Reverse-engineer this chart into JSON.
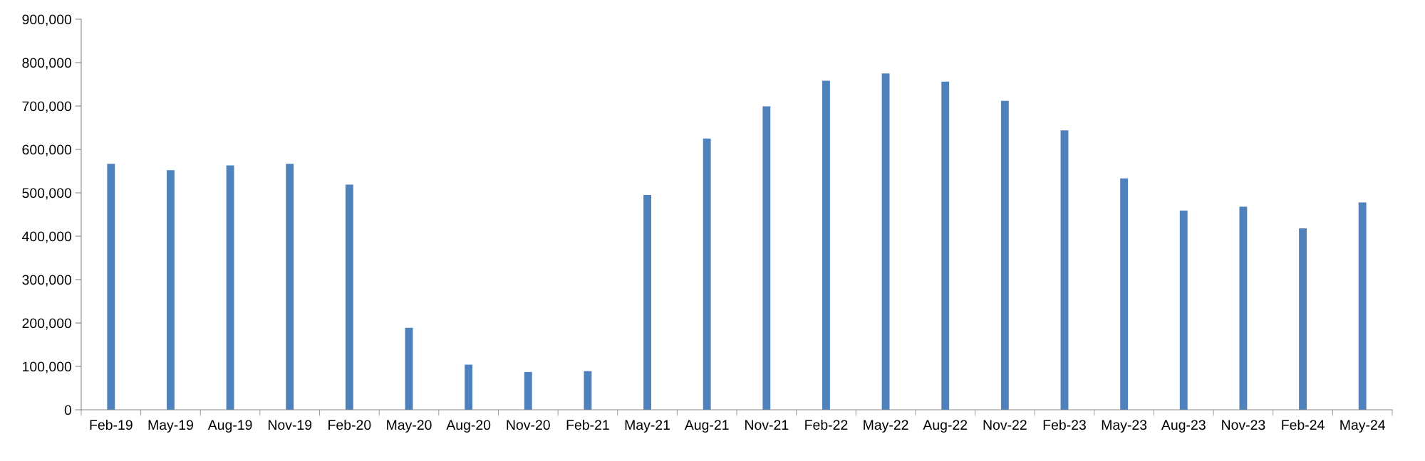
{
  "chart_data": {
    "type": "bar",
    "categories": [
      "Feb-19",
      "May-19",
      "Aug-19",
      "Nov-19",
      "Feb-20",
      "May-20",
      "Aug-20",
      "Nov-20",
      "Feb-21",
      "May-21",
      "Aug-21",
      "Nov-21",
      "Feb-22",
      "May-22",
      "Aug-22",
      "Nov-22",
      "Feb-23",
      "May-23",
      "Aug-23",
      "Nov-23",
      "Feb-24",
      "May-24"
    ],
    "values": [
      567000,
      552000,
      563000,
      567000,
      519000,
      189000,
      104000,
      87000,
      89000,
      495000,
      625000,
      699000,
      758000,
      775000,
      756000,
      712000,
      644000,
      533000,
      459000,
      468000,
      418000,
      478000
    ],
    "color": "#4f81bd",
    "ylim": [
      0,
      900000
    ],
    "yticks": [
      {
        "value": 0,
        "label": "0"
      },
      {
        "value": 100000,
        "label": "100,000"
      },
      {
        "value": 200000,
        "label": "200,000"
      },
      {
        "value": 300000,
        "label": "300,000"
      },
      {
        "value": 400000,
        "label": "400,000"
      },
      {
        "value": 500000,
        "label": "500,000"
      },
      {
        "value": 600000,
        "label": "600,000"
      },
      {
        "value": 700000,
        "label": "700,000"
      },
      {
        "value": 800000,
        "label": "800,000"
      },
      {
        "value": 900000,
        "label": "900,000"
      }
    ],
    "grid": false,
    "legend": false
  }
}
